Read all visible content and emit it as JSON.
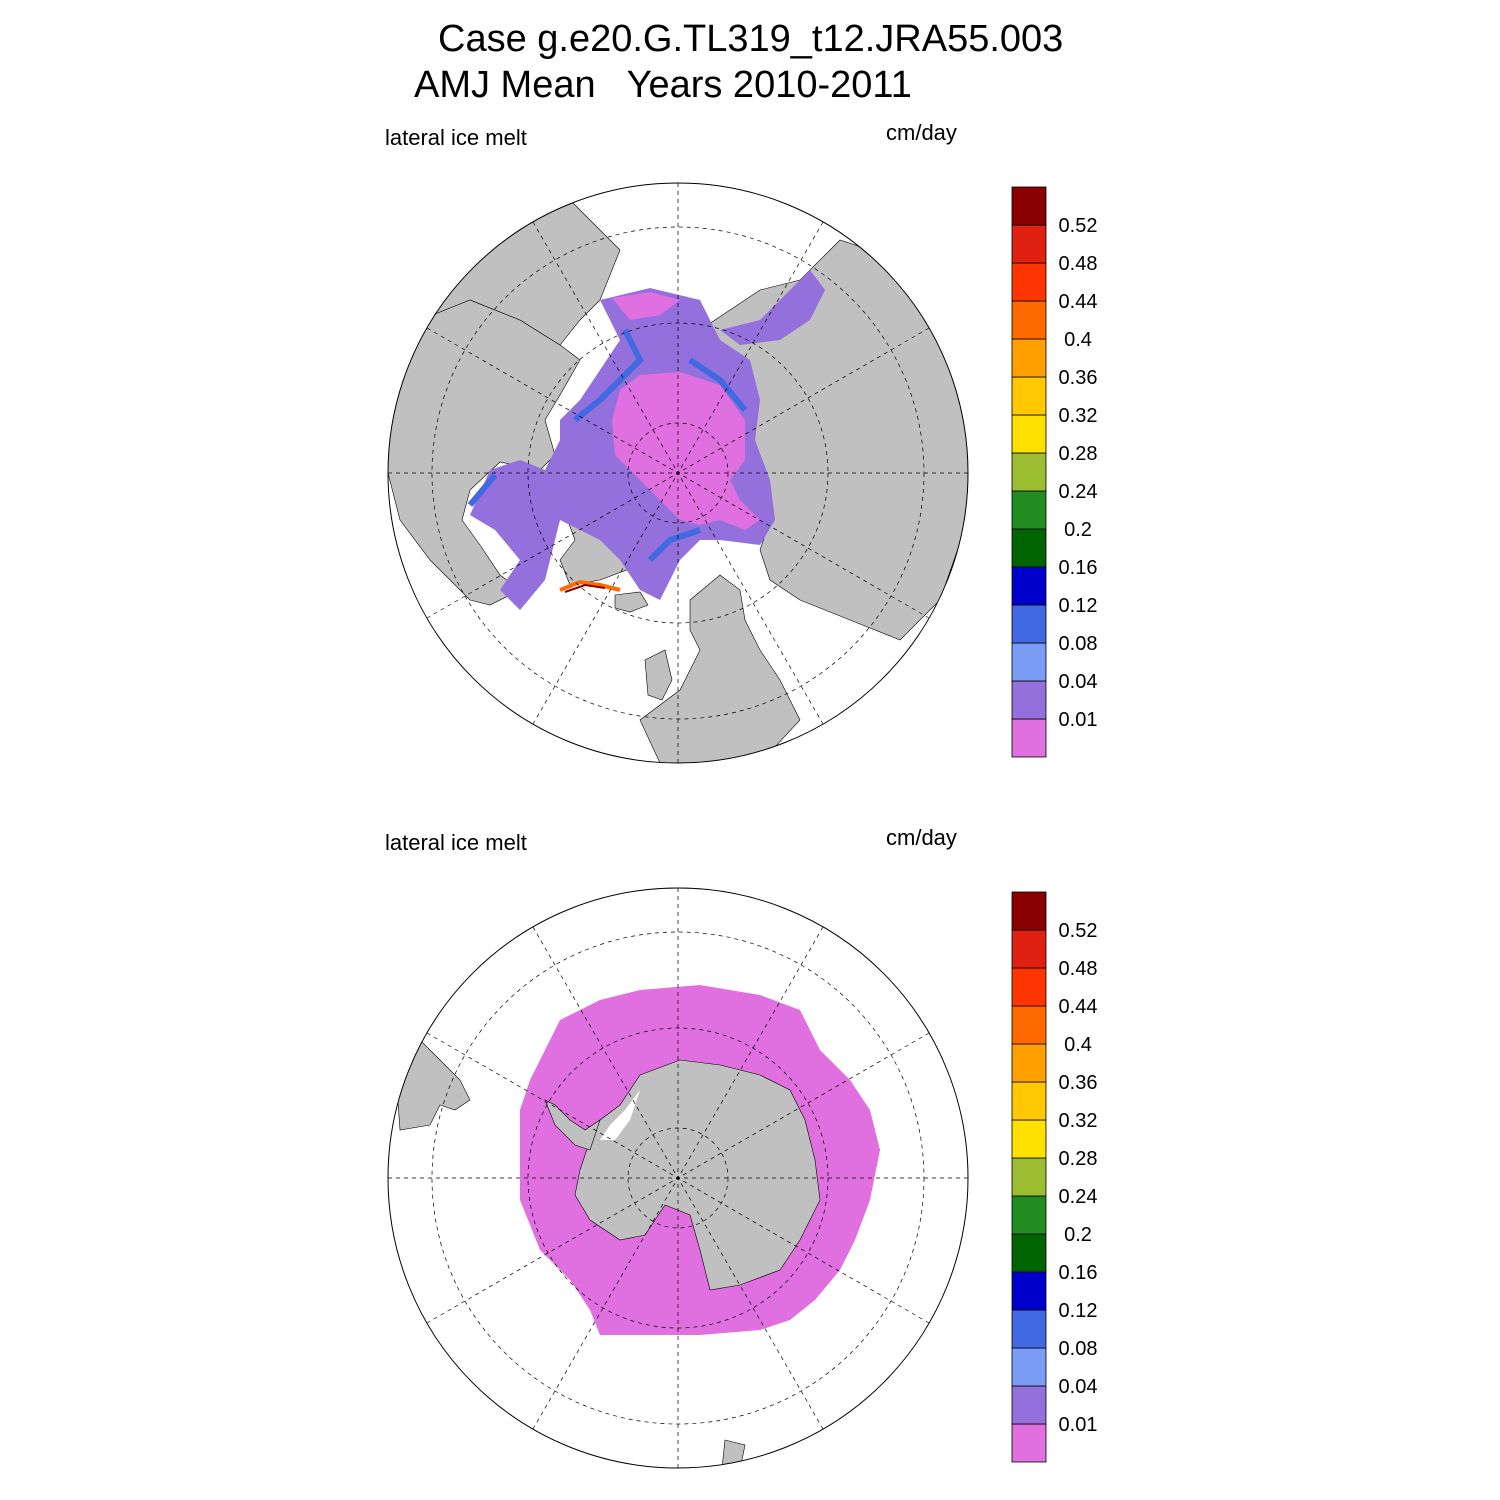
{
  "title": {
    "line1": "Case g.e20.G.TL319_t12.JRA55.003",
    "line2": "AMJ Mean   Years 2010-2011"
  },
  "panels": [
    {
      "id": "north",
      "hemisphere": "Arctic",
      "variable_label": "lateral ice melt",
      "units_label": "cm/day"
    },
    {
      "id": "south",
      "hemisphere": "Antarctic",
      "variable_label": "lateral ice melt",
      "units_label": "cm/day"
    }
  ],
  "colorbar": {
    "labels": [
      "0.01",
      "0.04",
      "0.08",
      "0.12",
      "0.16",
      "0.2",
      "0.24",
      "0.28",
      "0.32",
      "0.36",
      "0.4",
      "0.44",
      "0.48",
      "0.52"
    ],
    "colors": [
      "#e070e0",
      "#9370db",
      "#7b9cf5",
      "#4169e1",
      "#0000cd",
      "#006400",
      "#228b22",
      "#9abd32",
      "#ffe000",
      "#ffc800",
      "#ffa000",
      "#ff6a00",
      "#ff3500",
      "#e02010",
      "#8b0000"
    ]
  },
  "colors": {
    "land": "#c0c0c0",
    "ice_low": "#e070e0",
    "ice_mid": "#9370db",
    "ice_blue": "#7b9cf5",
    "ocean": "#ffffff"
  }
}
